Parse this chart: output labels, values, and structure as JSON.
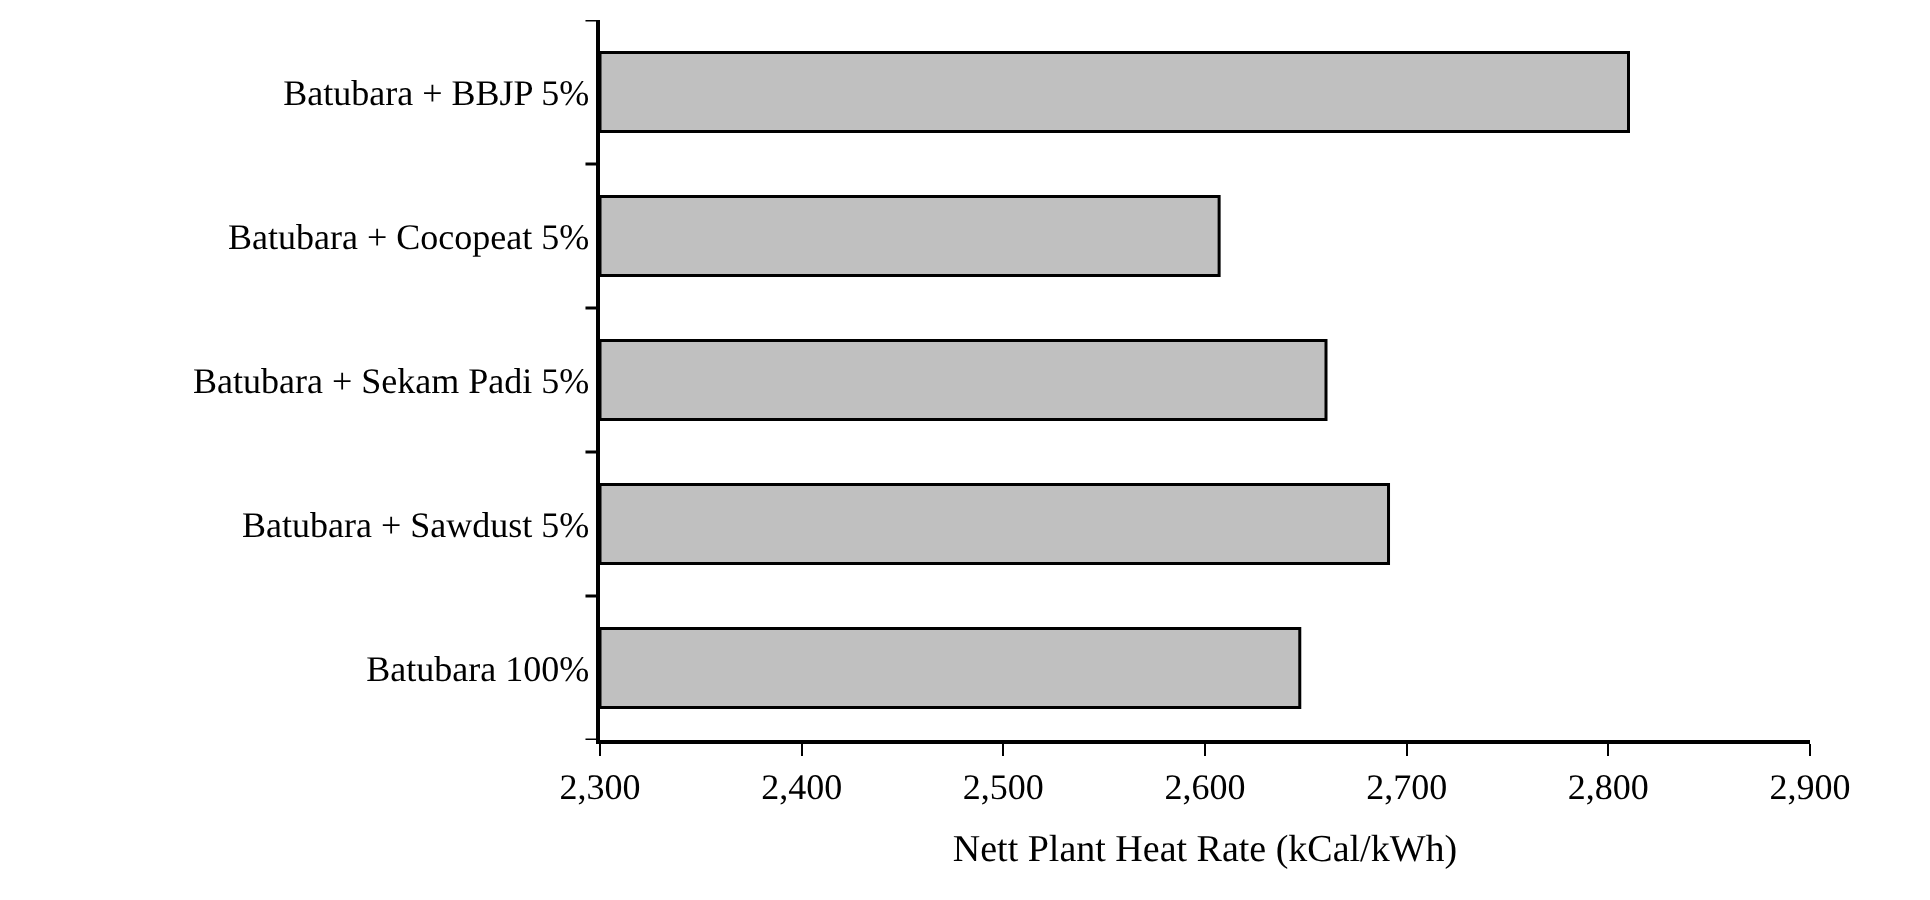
{
  "chart_data": {
    "type": "bar",
    "orientation": "horizontal",
    "xlabel": "Nett Plant Heat Rate (kCal/kWh)",
    "categories": [
      "Batubara + BBJP 5%",
      "Batubara + Cocopeat 5%",
      "Batubara + Sekam Padi 5%",
      "Batubara + Sawdust 5%",
      "Batubara 100%"
    ],
    "values": [
      2810,
      2607,
      2660,
      2691,
      2647
    ],
    "color": "#c0c0c0",
    "xlim": [
      2300,
      2900
    ],
    "xticks": [
      {
        "value": 2300,
        "label": "2,300"
      },
      {
        "value": 2400,
        "label": "2,400"
      },
      {
        "value": 2500,
        "label": "2,500"
      },
      {
        "value": 2600,
        "label": "2,600"
      },
      {
        "value": 2700,
        "label": "2,700"
      },
      {
        "value": 2800,
        "label": "2,800"
      },
      {
        "value": 2900,
        "label": "2,900"
      }
    ]
  }
}
